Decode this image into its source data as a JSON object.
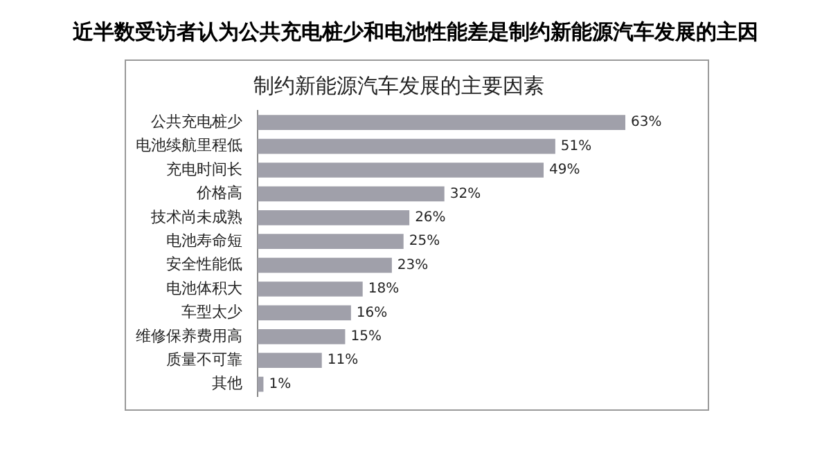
{
  "chart_data": {
    "type": "bar",
    "orientation": "horizontal",
    "title": "近半数受访者认为公共充电桩少和电池性能差是制约新能源汽车发展的主因",
    "subtitle": "制约新能源汽车发展的主要因素",
    "categories": [
      "公共充电桩少",
      "电池续航里程低",
      "充电时间长",
      "价格高",
      "技术尚未成熟",
      "电池寿命短",
      "安全性能低",
      "电池体积大",
      "车型太少",
      "维修保养费用高",
      "质量不可靠",
      "其他"
    ],
    "values": [
      63,
      51,
      49,
      32,
      26,
      25,
      23,
      18,
      16,
      15,
      11,
      1
    ],
    "value_labels": [
      "63%",
      "51%",
      "49%",
      "32%",
      "26%",
      "25%",
      "23%",
      "18%",
      "16%",
      "15%",
      "11%",
      "1%"
    ],
    "color": "#a0a0aa",
    "legend": false
  }
}
